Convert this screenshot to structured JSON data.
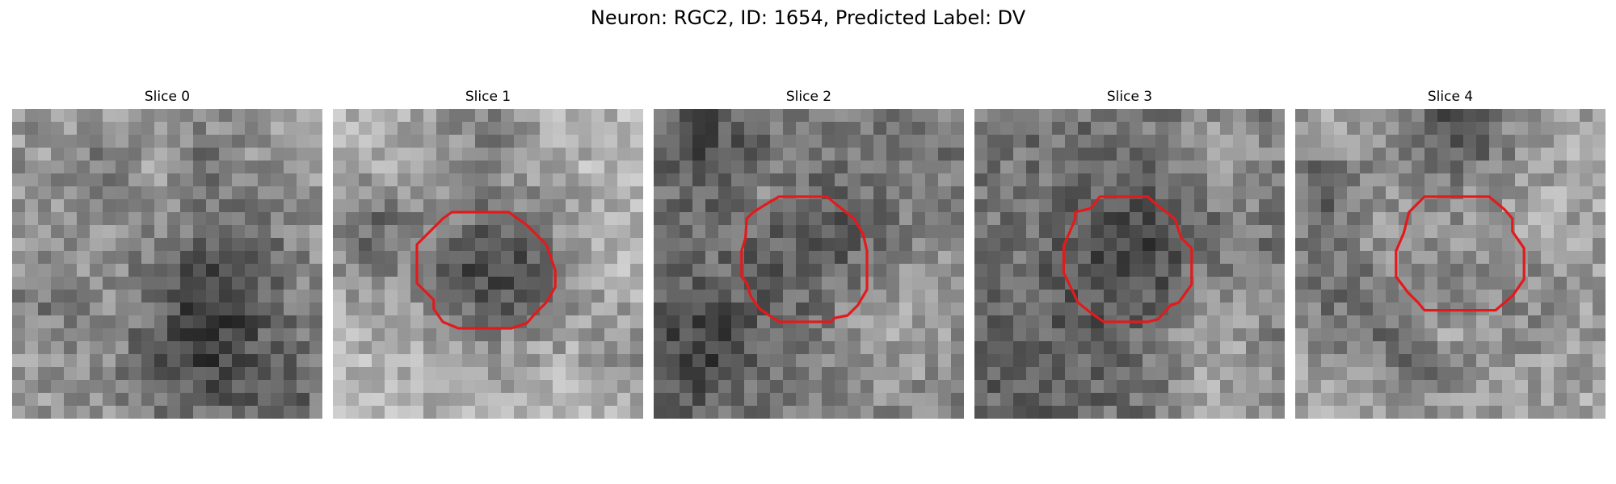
{
  "figure": {
    "title": "Neuron: RGC2, ID: 1654, Predicted Label: DV"
  },
  "panels": [
    {
      "label": "Slice 0",
      "has_contour": false
    },
    {
      "label": "Slice 1",
      "has_contour": true
    },
    {
      "label": "Slice 2",
      "has_contour": true
    },
    {
      "label": "Slice 3",
      "has_contour": true
    },
    {
      "label": "Slice 4",
      "has_contour": true
    }
  ],
  "colormap": "gray",
  "contour_color": "#e31a1c"
}
